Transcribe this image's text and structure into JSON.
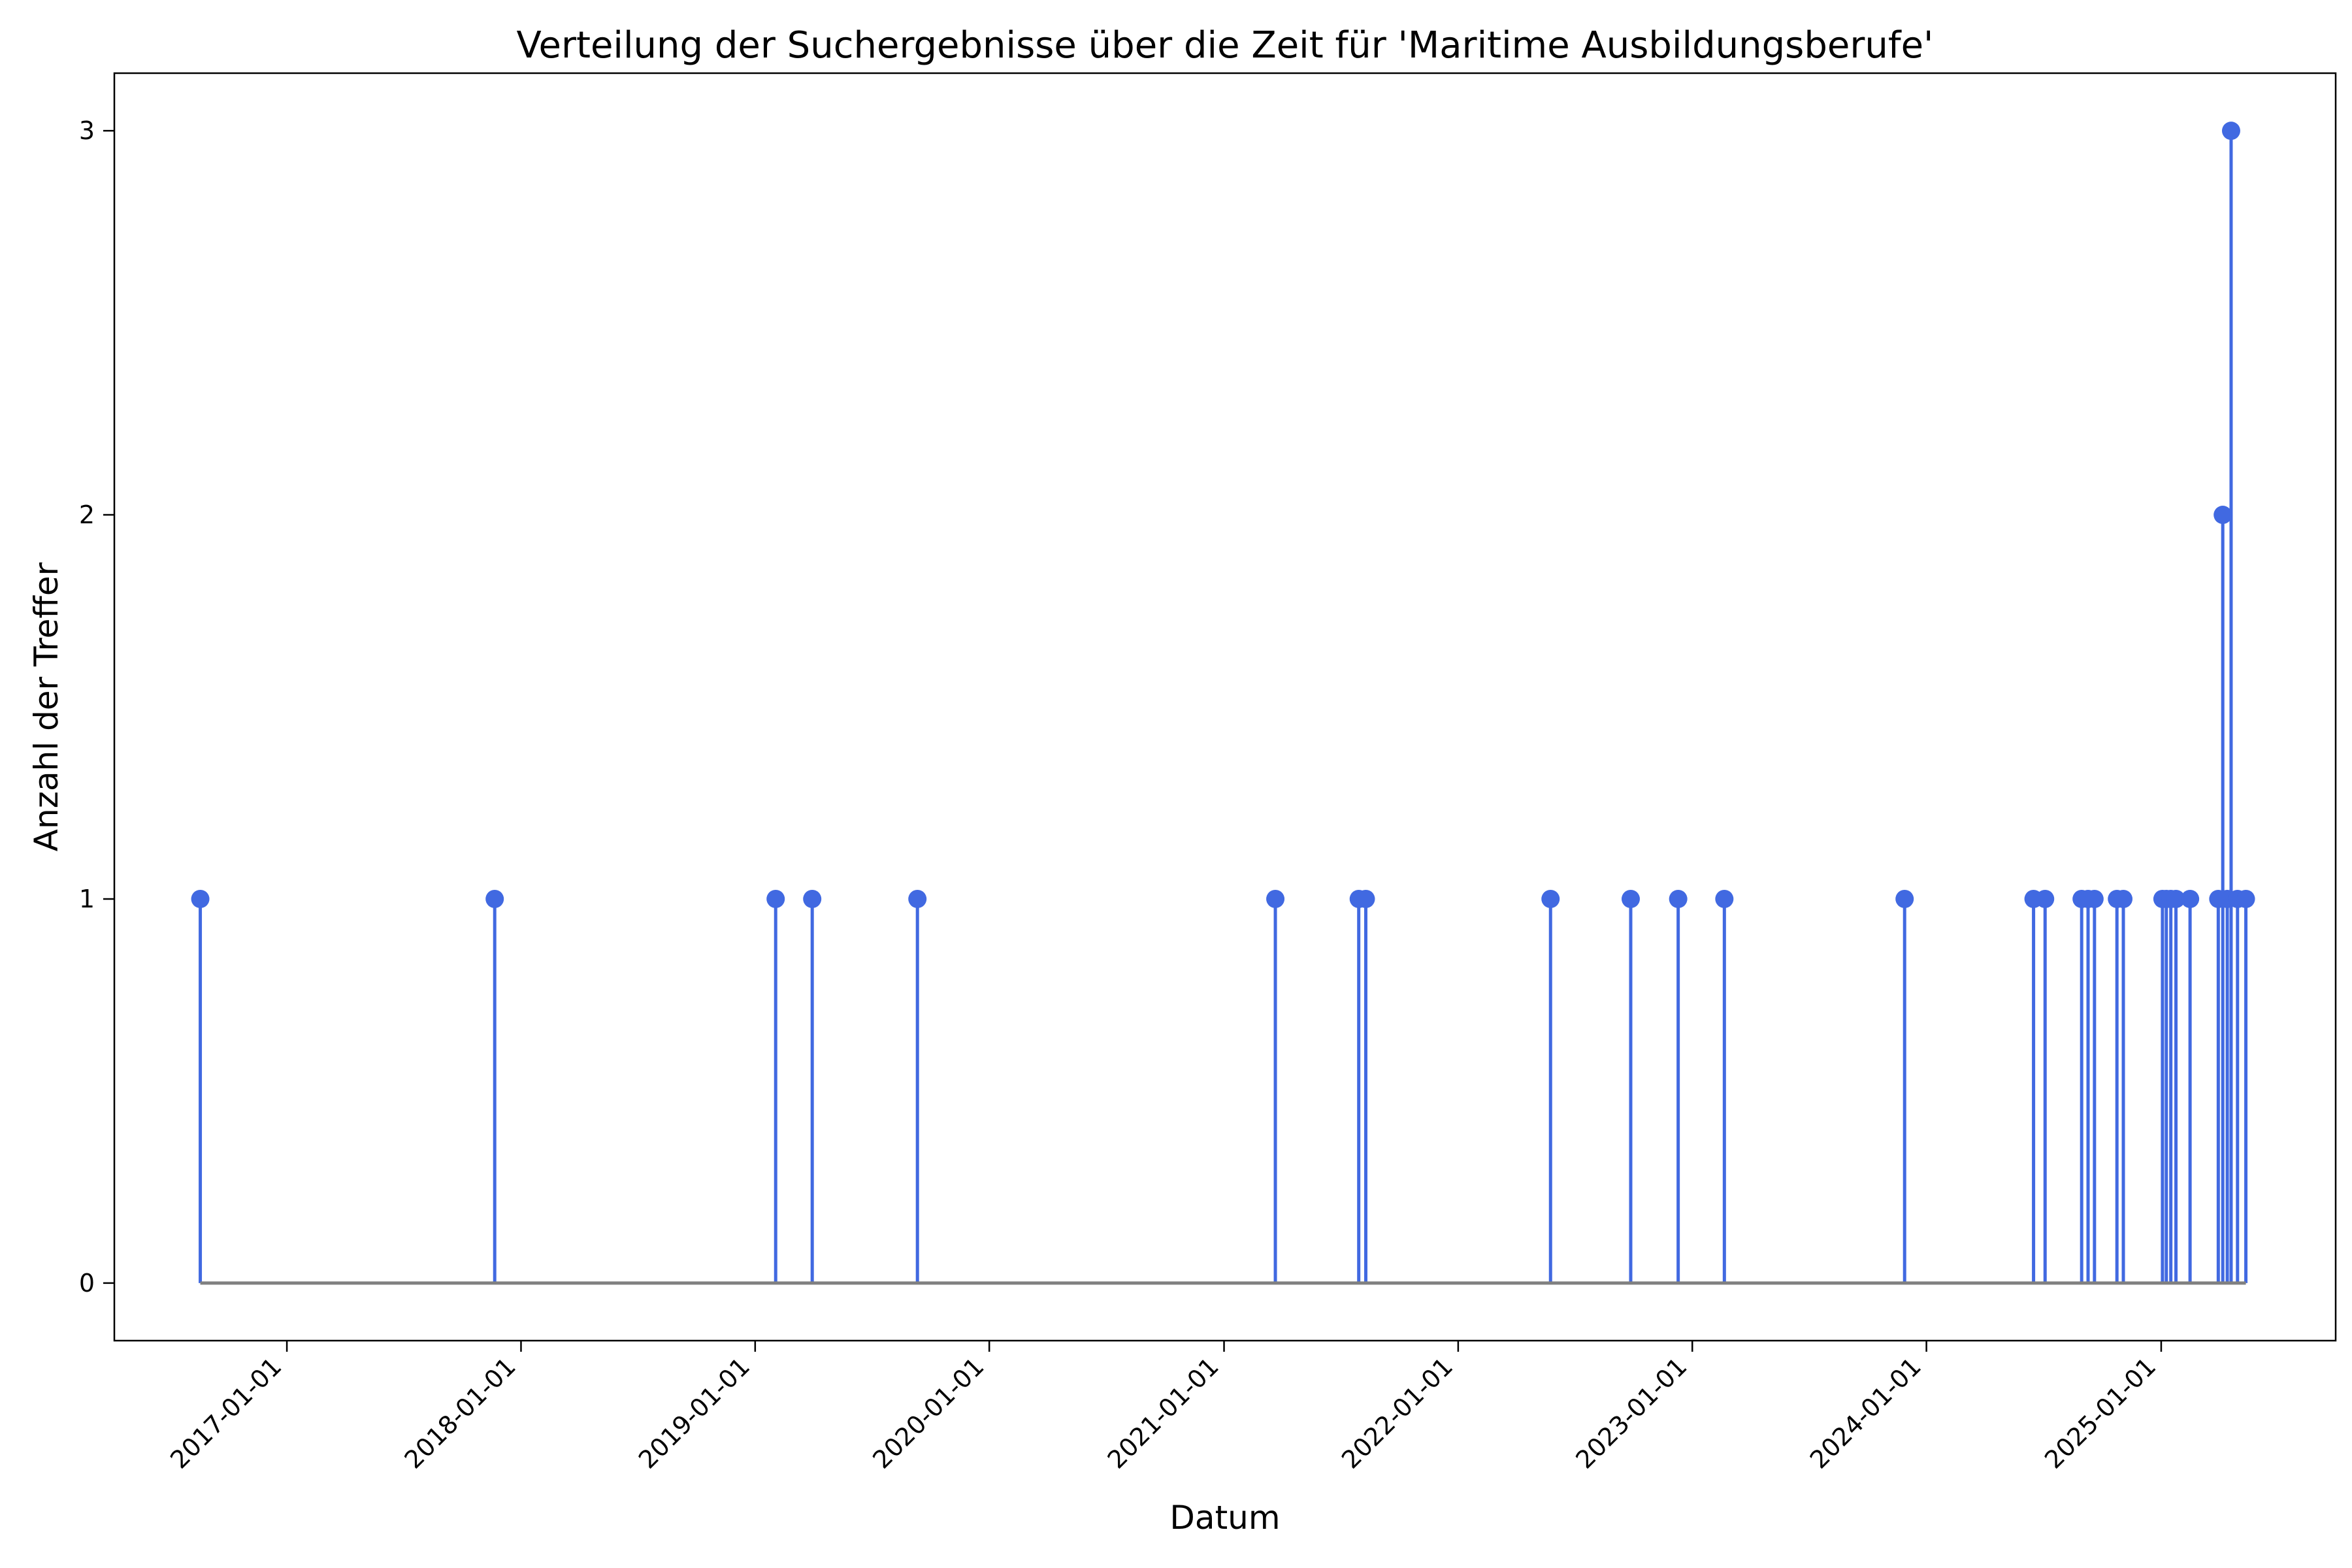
{
  "chart_data": {
    "type": "stem",
    "title": "Verteilung der Suchergebnisse über die Zeit für 'Maritime Ausbildungsberufe'",
    "xlabel": "Datum",
    "ylabel": "Anzahl der Treffer",
    "x_is_date": true,
    "xlim": [
      "2016-04-07",
      "2025-09-30"
    ],
    "ylim": [
      -0.15,
      3.15
    ],
    "x_ticks": [
      "2017-01-01",
      "2018-01-01",
      "2019-01-01",
      "2020-01-01",
      "2021-01-01",
      "2022-01-01",
      "2023-01-01",
      "2024-01-01",
      "2025-01-01"
    ],
    "y_ticks": [
      0,
      1,
      2,
      3
    ],
    "y_tick_labels": [
      "0",
      "1",
      "2",
      "3"
    ],
    "grid": false,
    "legend": "none",
    "colors": {
      "stem": "#4169e1",
      "baseline": "#808080"
    },
    "points": [
      {
        "x": "2016-08-19",
        "y": 1
      },
      {
        "x": "2017-11-21",
        "y": 1
      },
      {
        "x": "2019-02-02",
        "y": 1
      },
      {
        "x": "2019-03-31",
        "y": 1
      },
      {
        "x": "2019-09-11",
        "y": 1
      },
      {
        "x": "2021-03-22",
        "y": 1
      },
      {
        "x": "2021-07-30",
        "y": 1
      },
      {
        "x": "2021-08-10",
        "y": 1
      },
      {
        "x": "2022-05-25",
        "y": 1
      },
      {
        "x": "2022-09-27",
        "y": 1
      },
      {
        "x": "2022-12-10",
        "y": 1
      },
      {
        "x": "2023-02-20",
        "y": 1
      },
      {
        "x": "2023-11-28",
        "y": 1
      },
      {
        "x": "2024-06-16",
        "y": 1
      },
      {
        "x": "2024-07-04",
        "y": 1
      },
      {
        "x": "2024-08-30",
        "y": 1
      },
      {
        "x": "2024-09-09",
        "y": 1
      },
      {
        "x": "2024-09-19",
        "y": 1
      },
      {
        "x": "2024-10-24",
        "y": 1
      },
      {
        "x": "2024-11-03",
        "y": 1
      },
      {
        "x": "2025-01-03",
        "y": 1
      },
      {
        "x": "2025-01-09",
        "y": 1
      },
      {
        "x": "2025-01-16",
        "y": 1
      },
      {
        "x": "2025-01-24",
        "y": 1
      },
      {
        "x": "2025-02-15",
        "y": 1
      },
      {
        "x": "2025-03-31",
        "y": 1
      },
      {
        "x": "2025-04-07",
        "y": 2
      },
      {
        "x": "2025-04-14",
        "y": 1
      },
      {
        "x": "2025-04-20",
        "y": 3
      },
      {
        "x": "2025-04-30",
        "y": 1
      },
      {
        "x": "2025-05-13",
        "y": 1
      }
    ]
  }
}
